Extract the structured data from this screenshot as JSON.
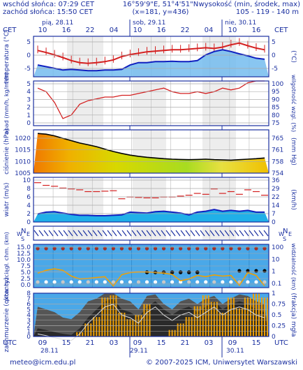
{
  "header": {
    "sunrise": "wschód słońca: 07:29 CET",
    "sunset": "zachód słońca: 15:50 CET",
    "coords": "16°59'9\"E, 51°4'51\"N",
    "grid": "(x=181, y=436)",
    "elev_title": "wysokość (min, środek, max)",
    "elev_values": "105 - 119 - 140 m",
    "tz_left": "CET",
    "tz_right": "CET",
    "tz_bottom_left": "UTC",
    "tz_bottom_right": "UTC"
  },
  "days_top": [
    "pią, 28.11",
    "sob, 29.11",
    "nie, 30.11"
  ],
  "hours_top": [
    "10",
    "16",
    "22",
    "04",
    "10",
    "16",
    "22",
    "04",
    "10",
    "16"
  ],
  "hours_bottom": [
    "09",
    "15",
    "21",
    "03",
    "09",
    "15",
    "21",
    "03",
    "09",
    "15"
  ],
  "days_bottom": [
    "28.11",
    "29.11",
    "30.11"
  ],
  "footer": {
    "email": "meteo@icm.edu.pl",
    "copyright": "© 2007-2025 ICM, Uniwersytet Warszawski"
  },
  "colors": {
    "frame": "#1a2fa0",
    "temp_line": "#d42020",
    "dew_line": "#1020c0",
    "sky_blue": "#4aa8e8",
    "bar_orange": "#f0a000"
  },
  "chart_data": [
    {
      "type": "line",
      "id": "temperature",
      "ylabel_left": "temperatura (°C)",
      "ylabel_right": "(°C)",
      "yticks": [
        "5",
        "0",
        "-5"
      ],
      "ylim": [
        -6,
        6
      ],
      "series": [
        {
          "values": [
            1.8,
            1.2,
            0.5,
            -0.3,
            -1.2,
            -1.8,
            -2.0,
            -1.8,
            -1.5,
            -1.0,
            0.0,
            0.6,
            1.0,
            1.4,
            1.6,
            1.8,
            2.0,
            2.0,
            2.2,
            2.4,
            2.6,
            2.4,
            2.8,
            3.5,
            4.0,
            3.2,
            2.5,
            2.0
          ]
        },
        {
          "values": [
            -2.5,
            -3.0,
            -3.5,
            -4.0,
            -3.8,
            -4.0,
            -4.2,
            -4.2,
            -4.0,
            -4.0,
            -3.8,
            -2.5,
            -1.8,
            -1.8,
            -1.5,
            -1.5,
            -1.4,
            -1.5,
            -1.5,
            -1.2,
            0.5,
            1.5,
            2.0,
            1.5,
            0.8,
            0.2,
            -0.5,
            -0.8
          ]
        }
      ]
    },
    {
      "type": "line",
      "id": "precipitation",
      "ylabel_left": "opad (mm/h, kg/m²/h)",
      "ylabel_right": "wilgotność wzgl. (%)",
      "yticks_left": [
        "5",
        "4",
        "3",
        "2",
        "1",
        "0"
      ],
      "yticks_right": [
        "100",
        "95",
        "90",
        "85",
        "80",
        "75"
      ],
      "ylim_right": [
        75,
        100
      ],
      "series": [
        {
          "values": [
            96,
            94,
            88,
            79,
            81,
            87,
            89,
            90,
            91,
            91,
            92,
            92,
            93,
            94,
            95,
            96,
            94,
            93,
            93,
            94,
            93,
            94,
            96,
            95,
            96,
            99,
            100,
            100
          ]
        }
      ]
    },
    {
      "type": "area",
      "id": "pressure",
      "ylabel_left": "ciśnienie (hPa)",
      "ylabel_right": "(mm Hg)",
      "yticks_left": [
        "1020",
        "1015",
        "1010",
        "1005"
      ],
      "yticks_right": [
        "765",
        "761",
        "758",
        "754"
      ],
      "ylim": [
        1005,
        1023
      ],
      "series": [
        {
          "values": [
            1021.5,
            1021.2,
            1020.5,
            1019.5,
            1018.5,
            1017.5,
            1016.8,
            1016.0,
            1015.0,
            1014.0,
            1013.2,
            1012.5,
            1012.0,
            1011.6,
            1011.3,
            1011.0,
            1010.8,
            1010.7,
            1010.6,
            1010.7,
            1010.8,
            1010.6,
            1010.5,
            1010.4,
            1010.6,
            1010.8,
            1011.0,
            1011.3
          ]
        }
      ]
    },
    {
      "type": "line",
      "id": "wind",
      "ylabel_left": "wiatr (m/s)",
      "ylabel_right": "(km/h)",
      "yticks_left": [
        "10",
        "8",
        "6",
        "4",
        "2",
        "0"
      ],
      "yticks_right": [
        "36",
        "29",
        "22",
        "14",
        "7",
        "0"
      ],
      "ylim": [
        0,
        10
      ],
      "series": [
        {
          "values": [
            1.8,
            2.2,
            2.3,
            2.0,
            1.7,
            1.5,
            1.5,
            1.4,
            1.4,
            1.5,
            1.6,
            2.2,
            2.1,
            2.0,
            2.3,
            2.4,
            2.2,
            2.0,
            1.6,
            2.2,
            2.4,
            2.8,
            2.4,
            2.6,
            2.4,
            2.6,
            2.2,
            2.2
          ]
        },
        {
          "values": [
            8.8,
            8.2,
            8.0,
            7.6,
            7.4,
            7.2,
            6.8,
            6.8,
            6.9,
            7.0,
            5.2,
            5.6,
            5.5,
            5.4,
            5.4,
            5.6,
            5.6,
            5.8,
            6.0,
            6.4,
            6.2,
            7.4,
            6.4,
            6.8,
            6.2,
            7.2,
            6.8,
            6.0
          ]
        }
      ]
    },
    {
      "type": "scatter",
      "id": "wind-direction",
      "compass": [
        "N",
        "W",
        "E",
        "S"
      ],
      "directions": [
        "SE",
        "SE",
        "SE",
        "SE",
        "SE",
        "SE",
        "SE",
        "SE",
        "SE",
        "SE",
        "SE",
        "SE",
        "SE",
        "SE",
        "SE",
        "SE",
        "SE",
        "SE",
        "SE",
        "SE",
        "SE",
        "SE",
        "SE",
        "SE",
        "SE",
        "SE",
        "SE",
        "SE"
      ]
    },
    {
      "type": "line",
      "id": "visibility",
      "ylabel_left": "pion. rozciągł. chm. (km)",
      "ylabel_right": "widzialność (km)",
      "yticks_left": [
        "15.0",
        "12.5",
        "10.0",
        "7.5",
        "5.0",
        "2.5",
        "0.0"
      ],
      "yticks_right": [
        "100",
        "10",
        "1",
        "0.1"
      ],
      "series": [
        {
          "values": [
            5,
            6,
            6.5,
            6,
            4,
            3,
            3.2,
            3.5,
            3.8,
            0.6,
            4.5,
            5.2,
            5.4,
            5.4,
            5.2,
            5.0,
            4.6,
            2.4,
            3.0,
            4.2,
            3.8,
            4.4,
            4.0,
            4.2,
            0.8,
            5.2,
            4.2,
            0.6
          ]
        }
      ]
    },
    {
      "type": "bar",
      "id": "cloud-cover",
      "ylabel_left": "zachmurzenie (oktanty)",
      "ylabel_right": "(frakcja) mgła",
      "yticks_left": [
        "8",
        "7",
        "6",
        "5",
        "4",
        "3",
        "2",
        "1",
        "0"
      ],
      "yticks_right": [
        "1",
        "0.75",
        "0.5",
        "0.25",
        "0"
      ],
      "values": [
        0,
        0,
        0,
        0,
        0,
        0.1,
        0.3,
        0.45,
        0.9,
        0.95,
        0.55,
        0.4,
        0.5,
        0.75,
        0,
        0,
        0.15,
        0.3,
        0.45,
        0.7,
        0.95,
        0.8,
        0.55,
        0.9,
        0.65,
        0.9,
        1.0,
        0.9
      ],
      "series": [
        {
          "values": [
            5.5,
            5.0,
            4.5,
            3.5,
            3.2,
            4.5,
            6.5,
            7.0,
            8.0,
            8.0,
            7.0,
            6.5,
            5.0,
            7.5,
            7.8,
            6.0,
            5.0,
            6.5,
            7.0,
            6.0,
            7.0,
            7.5,
            6.0,
            7.0,
            7.8,
            7.5,
            6.5,
            6.0
          ]
        },
        {
          "values": [
            1.5,
            1.2,
            0.8,
            0.5,
            0.3,
            1.5,
            3.5,
            5.0,
            6.5,
            7.0,
            5.0,
            4.5,
            3.5,
            5.5,
            6.5,
            5.0,
            4.0,
            5.0,
            5.5,
            4.5,
            5.5,
            6.5,
            5.0,
            6.0,
            6.5,
            6.0,
            5.0,
            4.5
          ]
        }
      ]
    }
  ]
}
